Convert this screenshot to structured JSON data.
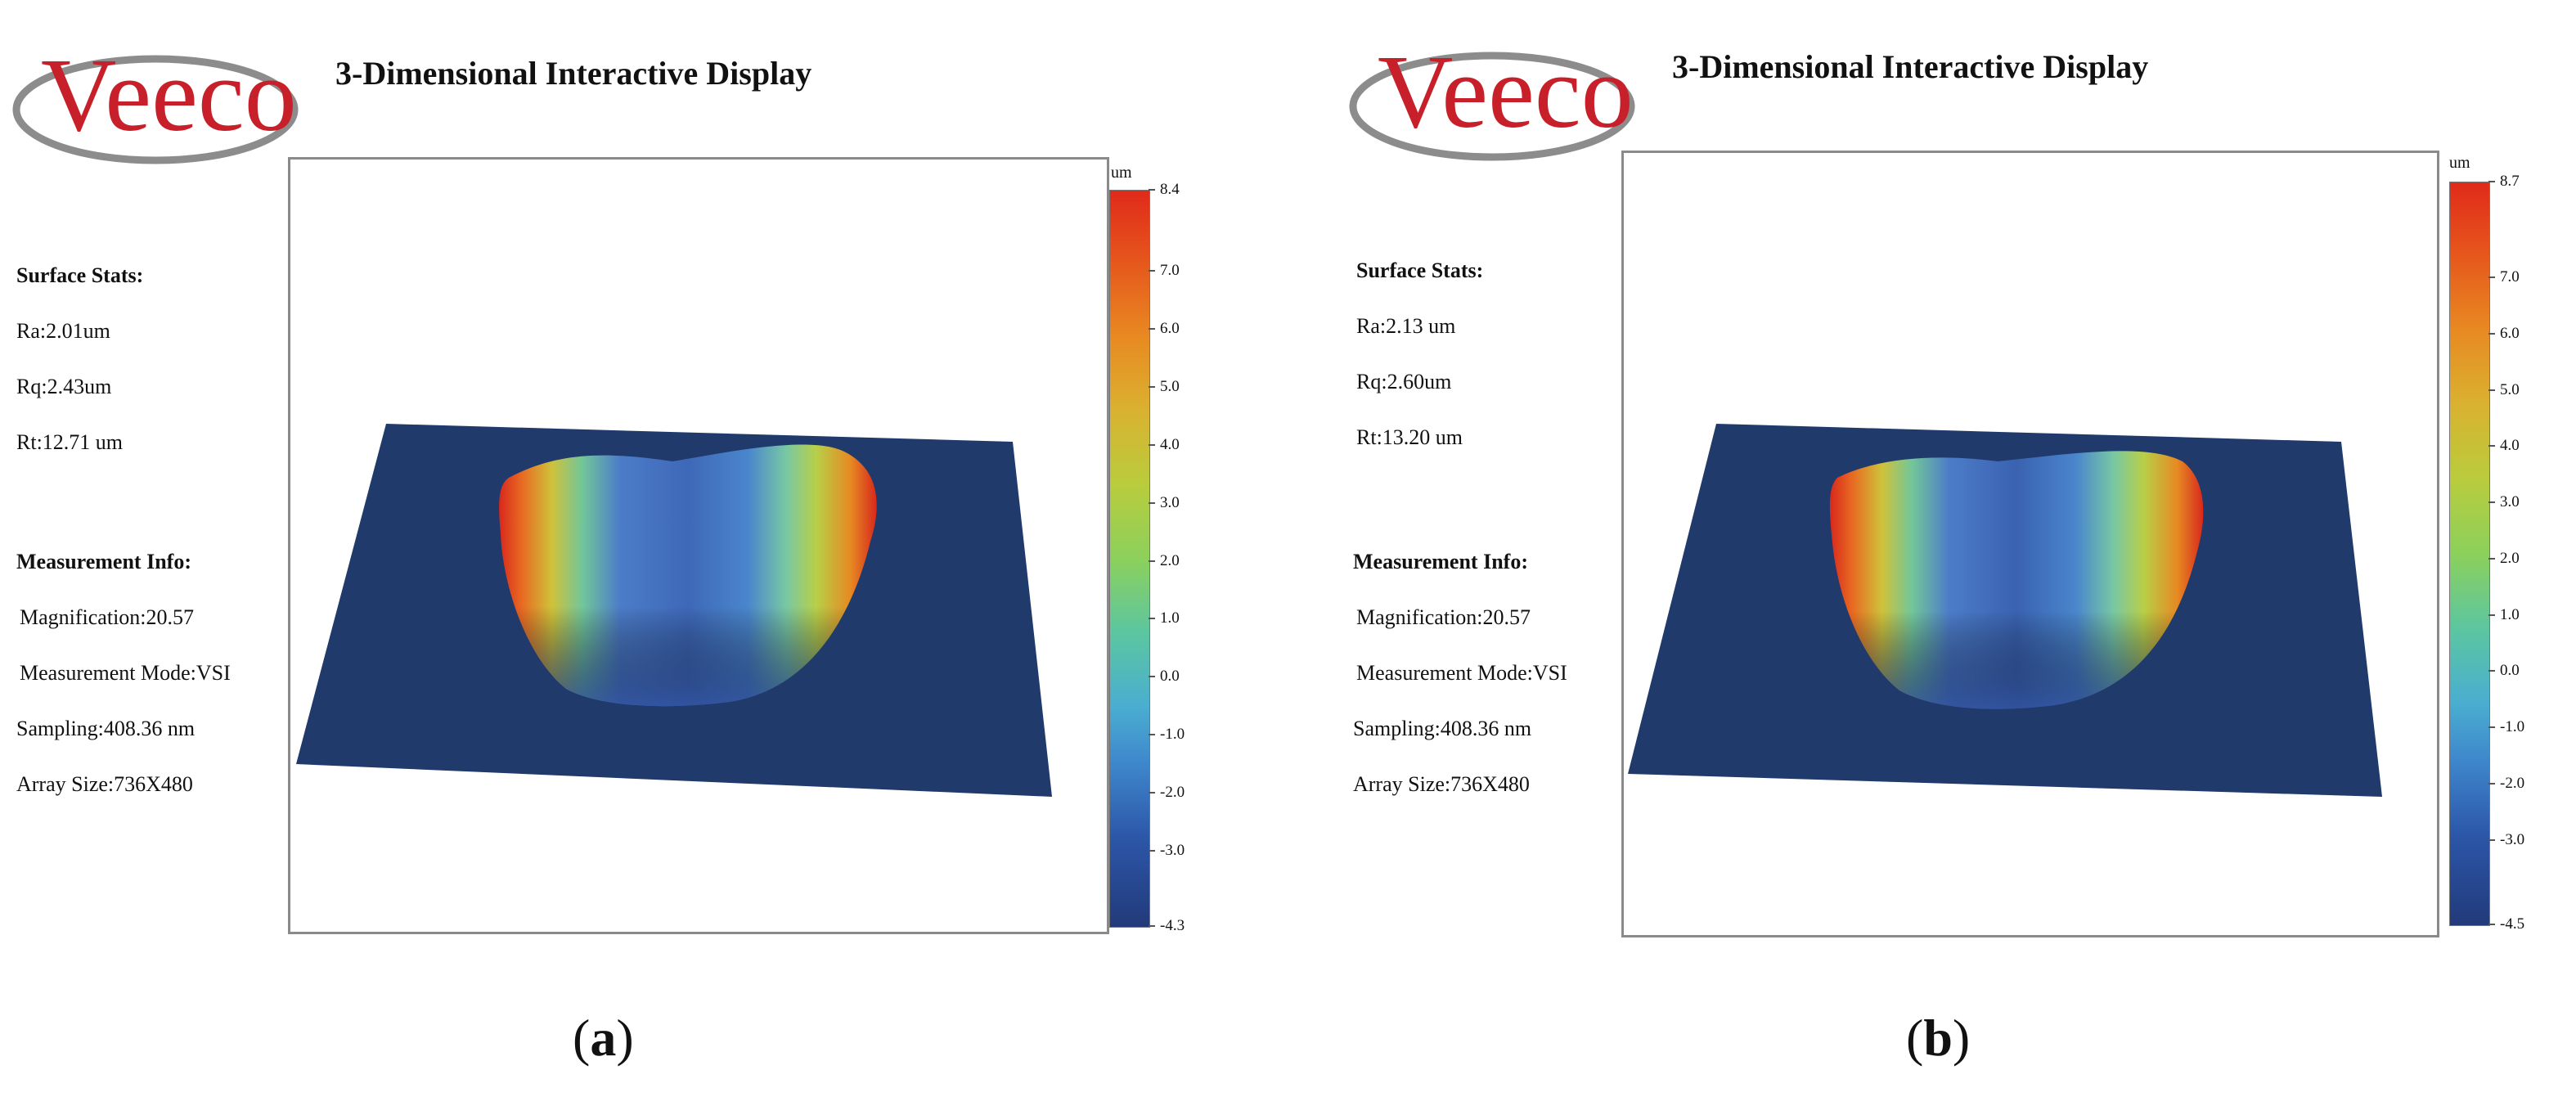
{
  "panels": [
    {
      "caption_open": "(",
      "caption_letter": "a",
      "caption_close": ")",
      "logo_text": "Veeco",
      "title": "3-Dimensional Interactive Display",
      "surface_stats": {
        "heading": "Surface Stats:",
        "ra": "Ra:2.01um",
        "rq": "Rq:2.43um",
        "rt": "Rt:12.71 um"
      },
      "measurement_info": {
        "heading": "Measurement Info:",
        "magnification": "Magnification:20.57",
        "mode": "Measurement Mode:VSI",
        "sampling": "Sampling:408.36 nm",
        "array_size": "Array Size:736X480"
      },
      "colorbar": {
        "unit": "um",
        "ticks": [
          "8.4",
          "7.0",
          "6.0",
          "5.0",
          "4.0",
          "3.0",
          "2.0",
          "1.0",
          "0.0",
          "-1.0",
          "-2.0",
          "-3.0",
          "-4.3"
        ],
        "max": 8.4,
        "min": -4.3
      }
    },
    {
      "caption_open": "(",
      "caption_letter": "b",
      "caption_close": ")",
      "logo_text": "Veeco",
      "title": "3-Dimensional Interactive Display",
      "surface_stats": {
        "heading": "Surface Stats:",
        "ra": "Ra:2.13 um",
        "rq": "Rq:2.60um",
        "rt": "Rt:13.20 um"
      },
      "measurement_info": {
        "heading": "Measurement Info:",
        "magnification": "Magnification:20.57",
        "mode": "Measurement Mode:VSI",
        "sampling": "Sampling:408.36 nm",
        "array_size": "Array Size:736X480"
      },
      "colorbar": {
        "unit": "um",
        "ticks": [
          "8.7",
          "7.0",
          "6.0",
          "5.0",
          "4.0",
          "3.0",
          "2.0",
          "1.0",
          "0.0",
          "-1.0",
          "-2.0",
          "-3.0",
          "-4.5"
        ],
        "max": 8.7,
        "min": -4.5
      }
    }
  ],
  "colors": {
    "surface_base": "#1f3a6b",
    "frame": "#8a8a8a",
    "logo_red": "#c8202a",
    "logo_grey": "#8c8c8c"
  }
}
